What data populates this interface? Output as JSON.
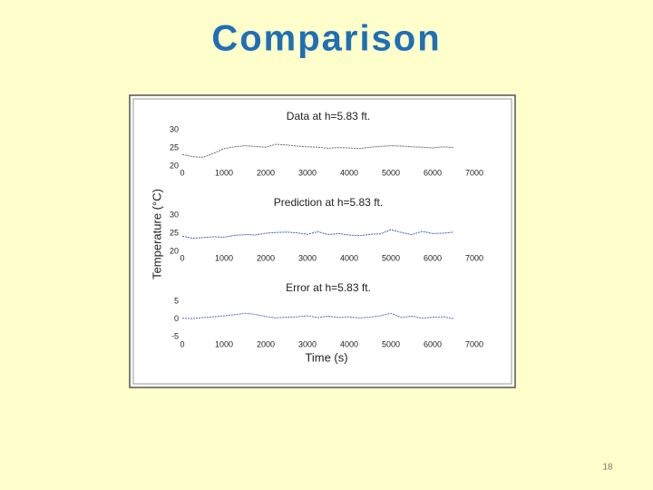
{
  "title": "Comparison",
  "page_number": "18",
  "chart_data": [
    {
      "type": "line",
      "title": "Data at h=5.83 ft.",
      "x": [
        0,
        250,
        500,
        750,
        1000,
        1250,
        1500,
        1750,
        2000,
        2250,
        2500,
        2750,
        3000,
        3250,
        3500,
        3750,
        4000,
        4250,
        4500,
        4750,
        5000,
        5250,
        5500,
        5750,
        6000,
        6250,
        6500
      ],
      "series": [
        {
          "color": "#6a6a78",
          "values": [
            23.2,
            22.6,
            22.4,
            23.5,
            24.8,
            25.3,
            25.6,
            25.4,
            25.2,
            26.0,
            25.8,
            25.5,
            25.3,
            25.2,
            24.9,
            25.1,
            25.0,
            24.8,
            25.2,
            25.4,
            25.6,
            25.5,
            25.3,
            25.2,
            25.0,
            25.3,
            25.1
          ]
        }
      ],
      "xlim": [
        0,
        7000
      ],
      "xticks": [
        0,
        1000,
        2000,
        3000,
        4000,
        5000,
        6000,
        7000
      ],
      "ylim": [
        20,
        30
      ],
      "yticks": [
        20,
        25,
        30
      ],
      "grid": false
    },
    {
      "type": "line",
      "title": "Prediction at h=5.83 ft.",
      "ylabel": "Temperature (°C)",
      "x": [
        0,
        250,
        500,
        750,
        1000,
        1250,
        1500,
        1750,
        2000,
        2250,
        2500,
        2750,
        3000,
        3250,
        3500,
        3750,
        4000,
        4250,
        4500,
        4750,
        5000,
        5250,
        5500,
        5750,
        6000,
        6250,
        6500
      ],
      "series": [
        {
          "color": "#4a5ab8",
          "values": [
            24.2,
            23.6,
            23.8,
            24.0,
            23.9,
            24.4,
            24.6,
            24.5,
            25.0,
            25.2,
            25.3,
            25.1,
            24.7,
            25.4,
            24.6,
            24.9,
            24.5,
            24.3,
            24.7,
            24.8,
            26.0,
            25.2,
            24.6,
            25.5,
            24.9,
            25.0,
            25.3
          ]
        }
      ],
      "xlim": [
        0,
        7000
      ],
      "xticks": [
        0,
        1000,
        2000,
        3000,
        4000,
        5000,
        6000,
        7000
      ],
      "ylim": [
        20,
        30
      ],
      "yticks": [
        20,
        25,
        30
      ],
      "grid": false
    },
    {
      "type": "line",
      "title": "Error at h=5.83 ft.",
      "xlabel": "Time (s)",
      "x": [
        0,
        250,
        500,
        750,
        1000,
        1250,
        1500,
        1750,
        2000,
        2250,
        2500,
        2750,
        3000,
        3250,
        3500,
        3750,
        4000,
        4250,
        4500,
        4750,
        5000,
        5250,
        5500,
        5750,
        6000,
        6250,
        6500
      ],
      "series": [
        {
          "color": "#5a68c0",
          "values": [
            0.2,
            0.1,
            0.4,
            0.6,
            0.9,
            1.2,
            1.6,
            1.3,
            0.7,
            0.3,
            0.5,
            0.6,
            0.9,
            0.4,
            0.8,
            0.4,
            0.6,
            0.3,
            0.5,
            0.9,
            1.6,
            0.4,
            0.8,
            0.2,
            0.5,
            0.6,
            0.1
          ]
        }
      ],
      "xlim": [
        0,
        7000
      ],
      "xticks": [
        0,
        1000,
        2000,
        3000,
        4000,
        5000,
        6000,
        7000
      ],
      "ylim": [
        -5,
        5
      ],
      "yticks": [
        -5,
        0,
        5
      ],
      "grid": false
    }
  ]
}
